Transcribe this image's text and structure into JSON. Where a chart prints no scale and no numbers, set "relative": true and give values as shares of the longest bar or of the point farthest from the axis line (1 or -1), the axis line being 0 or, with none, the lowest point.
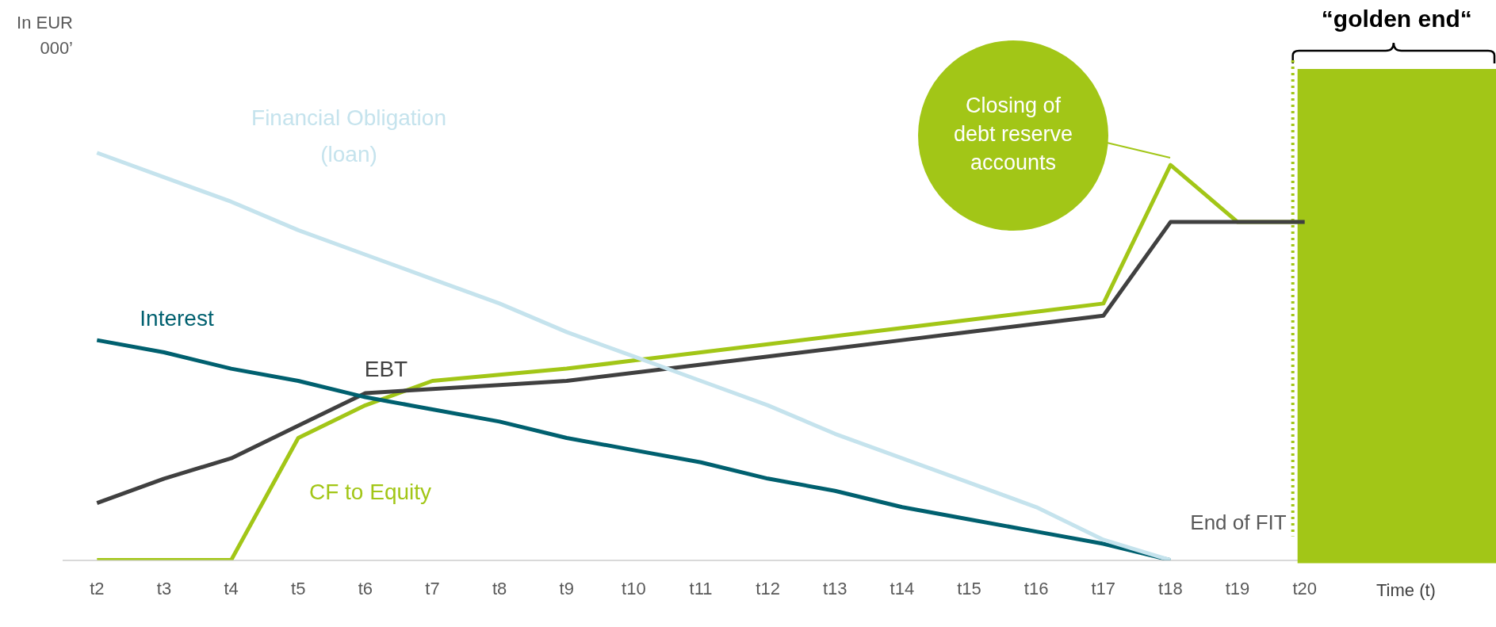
{
  "chart_data": {
    "type": "line",
    "relative": true,
    "xlabel": "Time (t)",
    "categories": [
      "t2",
      "t3",
      "t4",
      "t5",
      "t6",
      "t7",
      "t8",
      "t9",
      "t10",
      "t11",
      "t12",
      "t13",
      "t14",
      "t15",
      "t16",
      "t17",
      "t18",
      "t19",
      "t20"
    ],
    "series": [
      {
        "name": "Financial Obligation (loan)",
        "color": "#c5e3ed",
        "values": [
          1.0,
          0.94,
          0.88,
          0.81,
          0.75,
          0.69,
          0.63,
          0.56,
          0.5,
          0.44,
          0.38,
          0.31,
          0.25,
          0.19,
          0.13,
          0.05,
          0,
          null,
          null
        ]
      },
      {
        "name": "Interest",
        "color": "#00606f",
        "values": [
          0.54,
          0.51,
          0.47,
          0.44,
          0.4,
          0.37,
          0.34,
          0.3,
          0.27,
          0.24,
          0.2,
          0.17,
          0.13,
          0.1,
          0.07,
          0.04,
          0,
          null,
          null
        ]
      },
      {
        "name": "EBT",
        "color": "#404040",
        "values": [
          0.14,
          0.2,
          0.25,
          0.33,
          0.41,
          0.42,
          0.43,
          0.44,
          0.46,
          0.48,
          0.5,
          0.52,
          0.54,
          0.56,
          0.58,
          0.6,
          0.83,
          0.83,
          0.83
        ]
      },
      {
        "name": "CF to Equity",
        "color": "#a2c617",
        "values": [
          0,
          0,
          0,
          0.3,
          0.38,
          0.44,
          0.455,
          0.47,
          0.49,
          0.51,
          0.53,
          0.55,
          0.57,
          0.59,
          0.61,
          0.63,
          0.97,
          0.83,
          0.83
        ]
      }
    ],
    "annotations": [
      "In EUR 000’",
      "Closing of debt reserve accounts"
    ],
    "ref_lines": [
      {
        "axis": "x",
        "value": "t20",
        "label": "End of FIT",
        "color": "#a2c617",
        "line_style": "dotted"
      }
    ],
    "bands": [
      {
        "axis": "x",
        "from": "t20",
        "to": "t20",
        "label": "“golden end“",
        "color": "#a2c617"
      }
    ],
    "legend": false,
    "grid": false,
    "marker": "none",
    "line_style": "solid"
  }
}
